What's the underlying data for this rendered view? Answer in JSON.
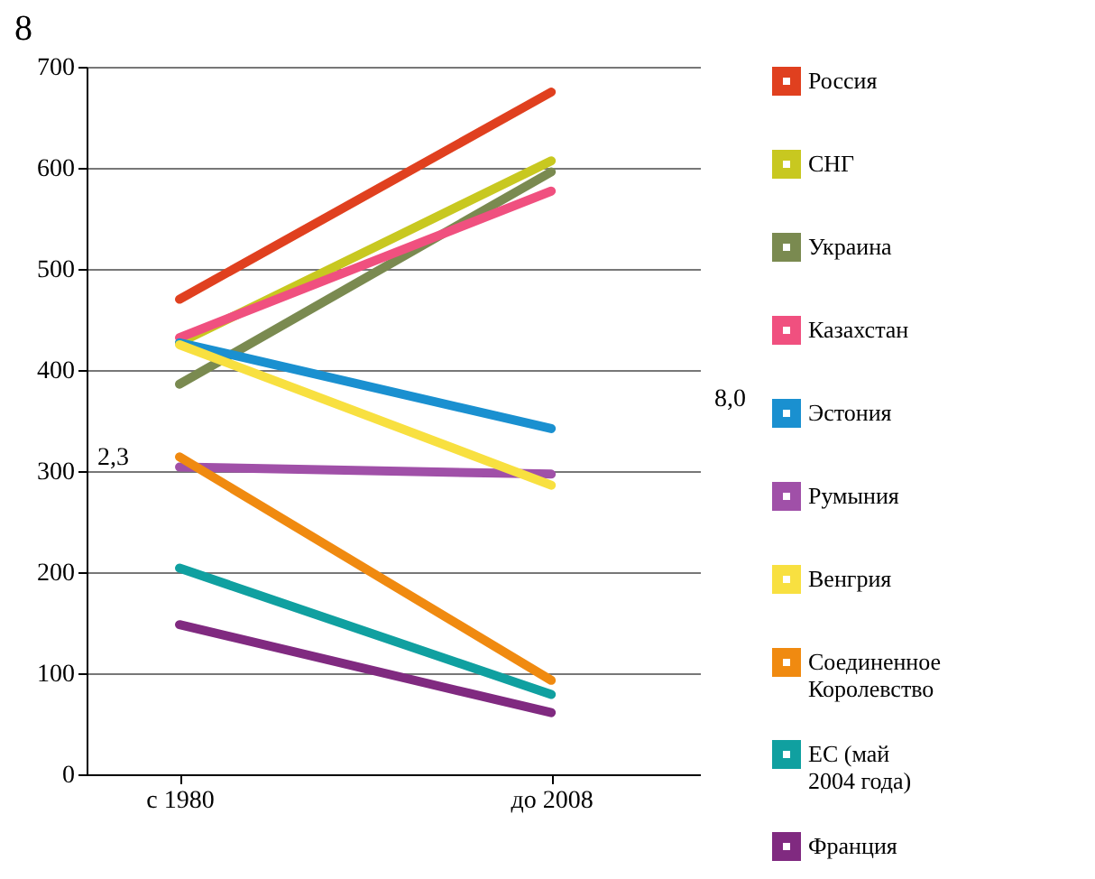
{
  "chart_data": {
    "type": "line",
    "title": "8",
    "categories": [
      "с 1980",
      "до 2008"
    ],
    "series": [
      {
        "name": "Россия",
        "color": "#e0401f",
        "values": [
          470,
          675
        ]
      },
      {
        "name": "СНГ",
        "color": "#c8c820",
        "values": [
          427,
          607
        ]
      },
      {
        "name": "Украина",
        "color": "#7a8a50",
        "values": [
          386,
          596
        ]
      },
      {
        "name": "Казахстан",
        "color": "#f0507f",
        "values": [
          432,
          577
        ]
      },
      {
        "name": "Эстония",
        "color": "#1a90d0",
        "values": [
          427,
          342
        ]
      },
      {
        "name": "Румыния",
        "color": "#a050a8",
        "values": [
          304,
          297
        ]
      },
      {
        "name": "Венгрия",
        "color": "#f8e040",
        "values": [
          425,
          286
        ]
      },
      {
        "name": "Соединенное Королевство",
        "color": "#f08a10",
        "values": [
          314,
          93
        ]
      },
      {
        "name": "ЕС (май 2004 года)",
        "color": "#10a0a0",
        "values": [
          204,
          79
        ]
      },
      {
        "name": "Франция",
        "color": "#802a80",
        "values": [
          148,
          61
        ]
      }
    ],
    "ylim": [
      0,
      700
    ],
    "yticks": [
      0,
      100,
      200,
      300,
      400,
      500,
      600,
      700
    ],
    "grid": "y",
    "legend": "right",
    "marker": "none",
    "annotations": [
      "2,3",
      "8,0"
    ]
  }
}
